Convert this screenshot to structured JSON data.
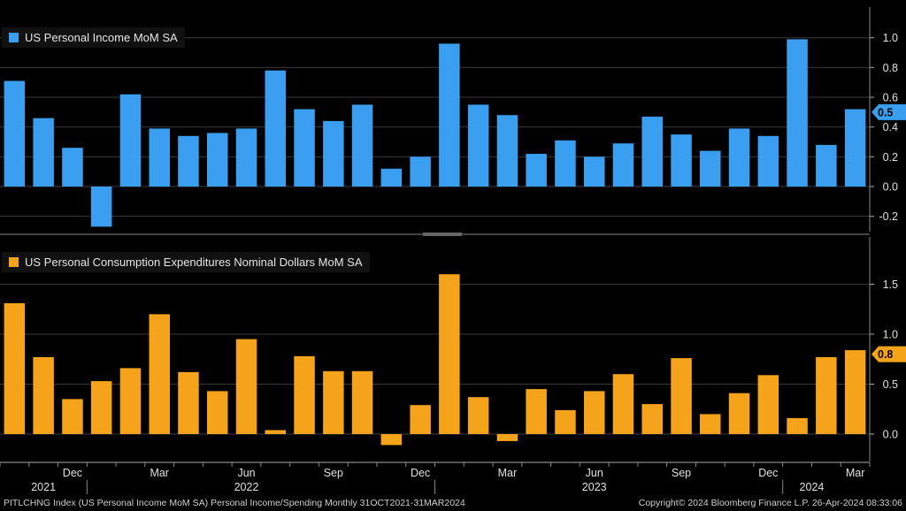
{
  "chart_data": [
    {
      "type": "bar",
      "title": "US Personal Income MoM SA",
      "color": "#3a9ff0",
      "ylim": [
        -0.3,
        1.0
      ],
      "ticks": [
        "1.0",
        "0.8",
        "0.6",
        "0.4",
        "0.2",
        "0.0",
        "-0.2"
      ],
      "tick_values": [
        1.0,
        0.8,
        0.6,
        0.4,
        0.2,
        0.0,
        -0.2
      ],
      "last_value_label": "0.5",
      "last_value": 0.5,
      "values": [
        0.71,
        0.46,
        0.26,
        -0.27,
        0.62,
        0.39,
        0.34,
        0.36,
        0.39,
        0.78,
        0.52,
        0.44,
        0.55,
        0.12,
        0.2,
        0.96,
        0.55,
        0.48,
        0.22,
        0.31,
        0.2,
        0.29,
        0.47,
        0.35,
        0.24,
        0.39,
        0.34,
        0.99,
        0.28,
        0.52
      ]
    },
    {
      "type": "bar",
      "title": "US Personal Consumption Expenditures Nominal Dollars MoM SA",
      "color": "#f5a31a",
      "ylim": [
        -0.15,
        1.9
      ],
      "ticks": [
        "1.5",
        "1.0",
        "0.5",
        "0.0"
      ],
      "tick_values": [
        1.5,
        1.0,
        0.5,
        0.0
      ],
      "last_value_label": "0.8",
      "last_value": 0.8,
      "values": [
        1.31,
        0.77,
        0.35,
        0.53,
        0.66,
        1.2,
        0.62,
        0.43,
        0.95,
        0.04,
        0.78,
        0.63,
        0.63,
        -0.11,
        0.29,
        1.6,
        0.37,
        -0.07,
        0.45,
        0.24,
        0.43,
        0.6,
        0.3,
        0.76,
        0.2,
        0.41,
        0.59,
        0.16,
        0.77,
        0.84
      ]
    }
  ],
  "x_axis": {
    "month_labels": [
      {
        "i": 2,
        "label": "Dec"
      },
      {
        "i": 5,
        "label": "Mar"
      },
      {
        "i": 8,
        "label": "Jun"
      },
      {
        "i": 11,
        "label": "Sep"
      },
      {
        "i": 14,
        "label": "Dec"
      },
      {
        "i": 17,
        "label": "Mar"
      },
      {
        "i": 20,
        "label": "Jun"
      },
      {
        "i": 23,
        "label": "Sep"
      },
      {
        "i": 26,
        "label": "Dec"
      },
      {
        "i": 29,
        "label": "Mar"
      }
    ],
    "year_labels": [
      {
        "i": 1,
        "label": "2021"
      },
      {
        "i": 8,
        "label": "2022"
      },
      {
        "i": 20,
        "label": "2023"
      },
      {
        "i": 27.5,
        "label": "2024"
      }
    ]
  },
  "footer": {
    "left": "PITLCHNG Index (US Personal Income MoM SA) Personal Income/Spending  Monthly 31OCT2021-31MAR2024",
    "right": "Copyright© 2024 Bloomberg Finance L.P.      26-Apr-2024 08:33:06"
  }
}
